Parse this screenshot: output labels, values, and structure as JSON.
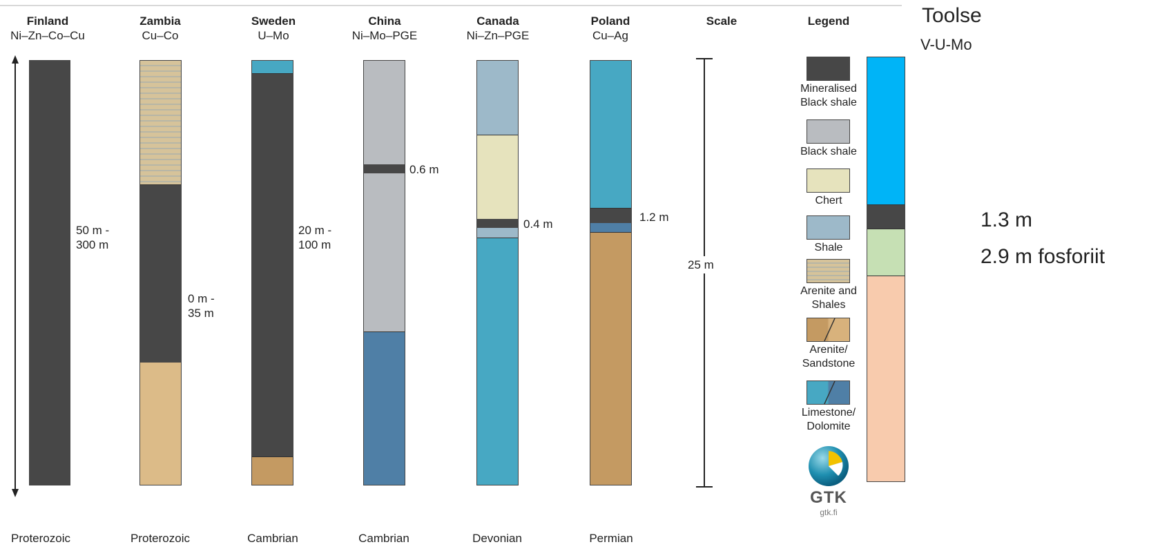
{
  "columns": [
    {
      "country": "Finland",
      "metals": "Ni–Zn–Co–Cu",
      "era": "Proterozoic",
      "thickness": "50 m -\n300 m"
    },
    {
      "country": "Zambia",
      "metals": "Cu–Co",
      "era": "Proterozoic",
      "thickness": "0 m -\n35 m"
    },
    {
      "country": "Sweden",
      "metals": "U–Mo",
      "era": "Cambrian",
      "thickness": "20 m -\n100 m"
    },
    {
      "country": "China",
      "metals": "Ni–Mo–PGE",
      "era": "Cambrian",
      "thickness": "0.6 m"
    },
    {
      "country": "Canada",
      "metals": "Ni–Zn–PGE",
      "era": "Devonian",
      "thickness": "0.4 m"
    },
    {
      "country": "Poland",
      "metals": "Cu–Ag",
      "era": "Permian",
      "thickness": "1.2 m"
    }
  ],
  "scale": {
    "header": "Scale",
    "value": "25 m"
  },
  "legend": {
    "header": "Legend",
    "items": [
      {
        "label": "Mineralised\nBlack shale",
        "color": "#474747"
      },
      {
        "label": "Black shale",
        "color": "#b9bcc0"
      },
      {
        "label": "Chert",
        "color": "#e6e3bd"
      },
      {
        "label": "Shale",
        "color": "#9db9c9"
      },
      {
        "label": "Arenite and\nShales",
        "color": "#d6c39a"
      },
      {
        "label": "Arenite/\nSandstone",
        "color": "#c49a62"
      },
      {
        "label": "Limestone/\nDolomite",
        "color": "#47a8c3"
      }
    ]
  },
  "logo": {
    "text": "GTK",
    "url_text": "gtk.fi"
  },
  "toolse": {
    "title": "Toolse",
    "metals": "V-U-Mo",
    "layer1": "1.3 m",
    "layer2": "2.9 m fosforiit"
  },
  "colors": {
    "mineralised": "#474747",
    "black_shale": "#b9bcc0",
    "chert": "#e6e3bd",
    "shale": "#9db9c9",
    "arenite_stripe_a": "#d6c39a",
    "arenite_stripe_b": "#b7b6a6",
    "sandstone_light": "#dcbb88",
    "sandstone": "#c49a62",
    "limestone": "#47a8c3",
    "dolomite": "#4f7fa6",
    "toolse_blue": "#00b4f7",
    "toolse_green": "#c6e0b4",
    "toolse_peach": "#f8cbad"
  }
}
